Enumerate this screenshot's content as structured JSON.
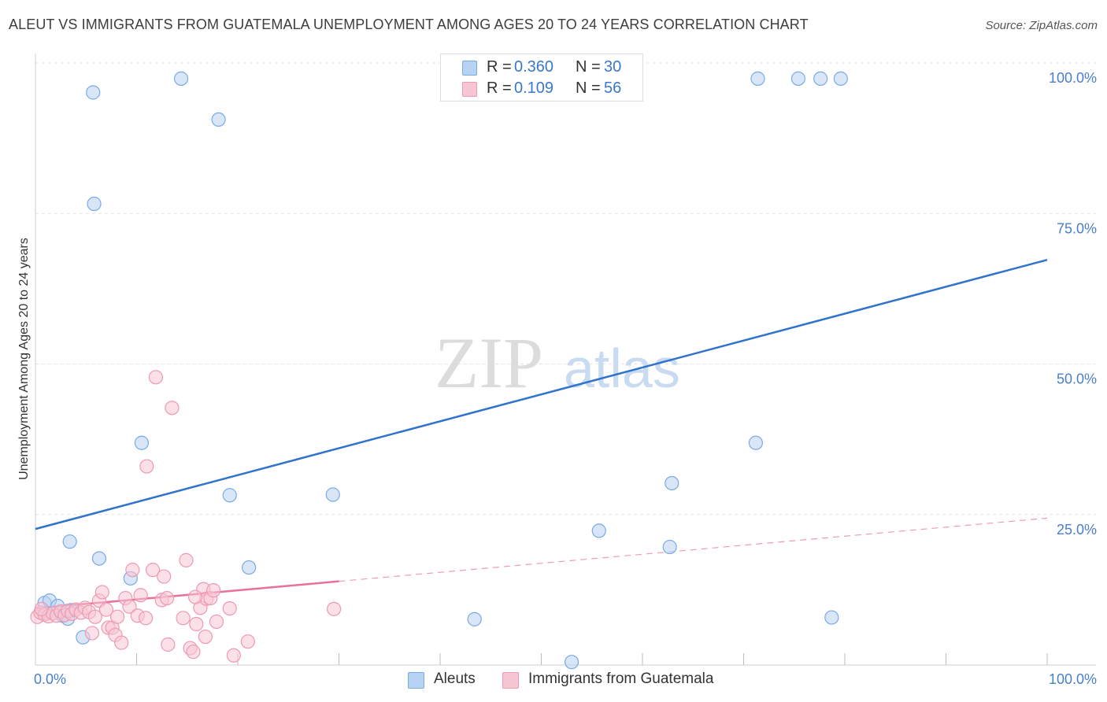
{
  "title": "ALEUT VS IMMIGRANTS FROM GUATEMALA UNEMPLOYMENT AMONG AGES 20 TO 24 YEARS CORRELATION CHART",
  "source": "Source: ZipAtlas.com",
  "watermark": {
    "zip": "ZIP",
    "atlas": "atlas"
  },
  "legend_top": {
    "rows": [
      {
        "r_label": "R =",
        "r_value": "0.360",
        "n_label": "N =",
        "n_value": "30"
      },
      {
        "r_label": "R =",
        "r_value": "0.109",
        "n_label": "N =",
        "n_value": "56"
      }
    ]
  },
  "colors": {
    "blue_fill": "#b8d2f3",
    "blue_stroke": "#7aaae6",
    "blue_line": "#2f73cc",
    "pink_fill": "#f8c6d3",
    "pink_stroke": "#ee99b2",
    "pink_line": "#e8709a",
    "axis_text": "#4a7fc9",
    "grid": "#e3e3e3"
  },
  "chart_data": {
    "type": "scatter",
    "title": "ALEUT VS IMMIGRANTS FROM GUATEMALA UNEMPLOYMENT AMONG AGES 20 TO 24 YEARS CORRELATION CHART",
    "xlabel": "",
    "ylabel": "Unemployment Among Ages 20 to 24 years",
    "xlim": [
      0,
      100
    ],
    "ylim": [
      0,
      100
    ],
    "x_tick_labels": [
      "0.0%",
      "100.0%"
    ],
    "y_tick_labels": [
      "100.0%",
      "75.0%",
      "50.0%",
      "25.0%"
    ],
    "y_ticks": [
      100,
      75,
      50,
      25
    ],
    "series": [
      {
        "name": "Aleuts",
        "color": "blue",
        "r": 0.36,
        "n": 30,
        "trend": {
          "x": [
            0,
            100
          ],
          "y": [
            22.6,
            67.3
          ]
        },
        "points": [
          [
            0.9,
            10.3
          ],
          [
            1.4,
            10.7
          ],
          [
            2.2,
            9.8
          ],
          [
            2.7,
            8.2
          ],
          [
            3.2,
            7.7
          ],
          [
            3.5,
            9.1
          ],
          [
            3.4,
            20.5
          ],
          [
            4.7,
            4.6
          ],
          [
            6.3,
            17.7
          ],
          [
            5.8,
            76.6
          ],
          [
            5.7,
            95.1
          ],
          [
            9.4,
            14.4
          ],
          [
            10.5,
            36.9
          ],
          [
            14.4,
            97.4
          ],
          [
            18.1,
            90.6
          ],
          [
            19.2,
            28.2
          ],
          [
            21.1,
            16.2
          ],
          [
            29.4,
            28.3
          ],
          [
            43.4,
            7.6
          ],
          [
            53.0,
            0.5
          ],
          [
            55.7,
            22.3
          ],
          [
            62.7,
            19.6
          ],
          [
            62.9,
            30.2
          ],
          [
            71.2,
            36.9
          ],
          [
            71.4,
            97.4
          ],
          [
            75.4,
            97.4
          ],
          [
            77.6,
            97.4
          ],
          [
            79.6,
            97.4
          ],
          [
            78.7,
            7.9
          ],
          [
            1.1,
            8.6
          ]
        ]
      },
      {
        "name": "Immigrants from Guatemala",
        "color": "pink",
        "r": 0.109,
        "n": 56,
        "trend": {
          "x": [
            0,
            100
          ],
          "y": [
            9.4,
            24.4
          ],
          "solid_until": 30
        },
        "points": [
          [
            0.2,
            8.0
          ],
          [
            0.5,
            8.7
          ],
          [
            0.9,
            8.4
          ],
          [
            1.3,
            8.1
          ],
          [
            1.7,
            8.6
          ],
          [
            2.1,
            8.2
          ],
          [
            2.5,
            8.9
          ],
          [
            2.9,
            8.3
          ],
          [
            3.2,
            9.0
          ],
          [
            3.6,
            8.5
          ],
          [
            4.0,
            9.2
          ],
          [
            4.5,
            8.7
          ],
          [
            4.9,
            9.5
          ],
          [
            5.3,
            8.8
          ],
          [
            5.6,
            5.3
          ],
          [
            5.9,
            8.0
          ],
          [
            6.3,
            10.7
          ],
          [
            6.6,
            12.1
          ],
          [
            7.0,
            9.2
          ],
          [
            7.2,
            6.2
          ],
          [
            7.6,
            6.2
          ],
          [
            7.9,
            5.0
          ],
          [
            8.1,
            8.0
          ],
          [
            8.5,
            3.7
          ],
          [
            8.9,
            11.1
          ],
          [
            9.3,
            9.7
          ],
          [
            9.6,
            15.8
          ],
          [
            10.1,
            8.2
          ],
          [
            10.4,
            11.6
          ],
          [
            10.9,
            7.8
          ],
          [
            11.6,
            15.8
          ],
          [
            12.5,
            10.8
          ],
          [
            12.7,
            14.7
          ],
          [
            13.1,
            3.4
          ],
          [
            11.9,
            47.8
          ],
          [
            13.5,
            42.7
          ],
          [
            11.0,
            33.0
          ],
          [
            14.6,
            7.8
          ],
          [
            14.9,
            17.4
          ],
          [
            15.3,
            2.8
          ],
          [
            15.6,
            2.2
          ],
          [
            15.9,
            6.8
          ],
          [
            16.3,
            9.5
          ],
          [
            16.6,
            12.6
          ],
          [
            16.9,
            11.0
          ],
          [
            17.3,
            11.1
          ],
          [
            17.6,
            12.4
          ],
          [
            19.2,
            9.4
          ],
          [
            19.6,
            1.6
          ],
          [
            21.0,
            3.9
          ],
          [
            29.5,
            9.3
          ],
          [
            16.8,
            4.7
          ],
          [
            17.9,
            7.2
          ],
          [
            15.8,
            11.3
          ],
          [
            13.0,
            11.1
          ],
          [
            0.6,
            9.3
          ]
        ]
      }
    ]
  },
  "legend_bottom": {
    "items": [
      "Aleuts",
      "Immigrants from Guatemala"
    ]
  }
}
